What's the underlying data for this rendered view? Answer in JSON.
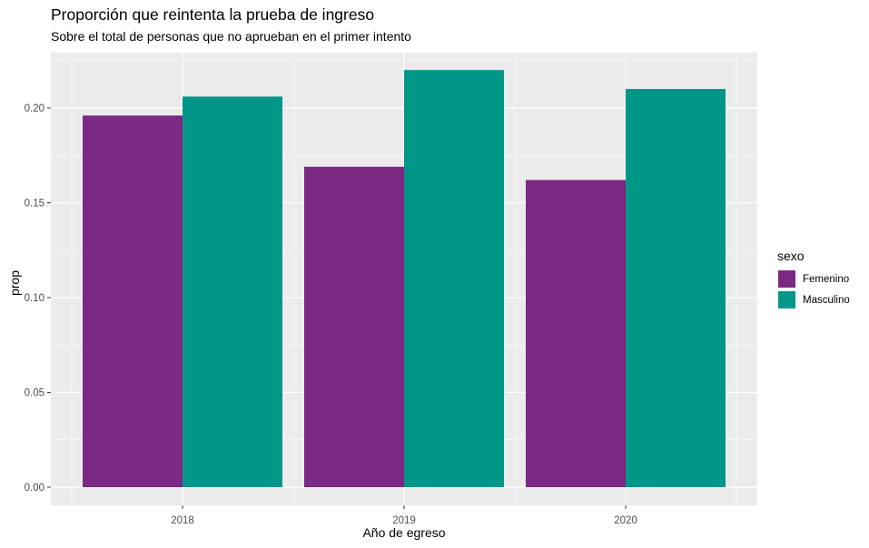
{
  "chart_data": {
    "type": "bar",
    "title": "Proporción que reintenta la prueba de ingreso",
    "subtitle": "Sobre el total de personas que no aprueban en el primer intento",
    "xlabel": "Año de egreso",
    "ylabel": "prop",
    "categories": [
      "2018",
      "2019",
      "2020"
    ],
    "series": [
      {
        "name": "Femenino",
        "values": [
          0.196,
          0.169,
          0.162
        ],
        "color": "#7b2982"
      },
      {
        "name": "Masculino",
        "values": [
          0.206,
          0.22,
          0.21
        ],
        "color": "#009788"
      }
    ],
    "yticks": [
      "0.00",
      "0.05",
      "0.10",
      "0.15",
      "0.20"
    ],
    "ylim": [
      0,
      0.231
    ],
    "grid": true,
    "legend": {
      "title": "sexo",
      "position": "right"
    }
  }
}
